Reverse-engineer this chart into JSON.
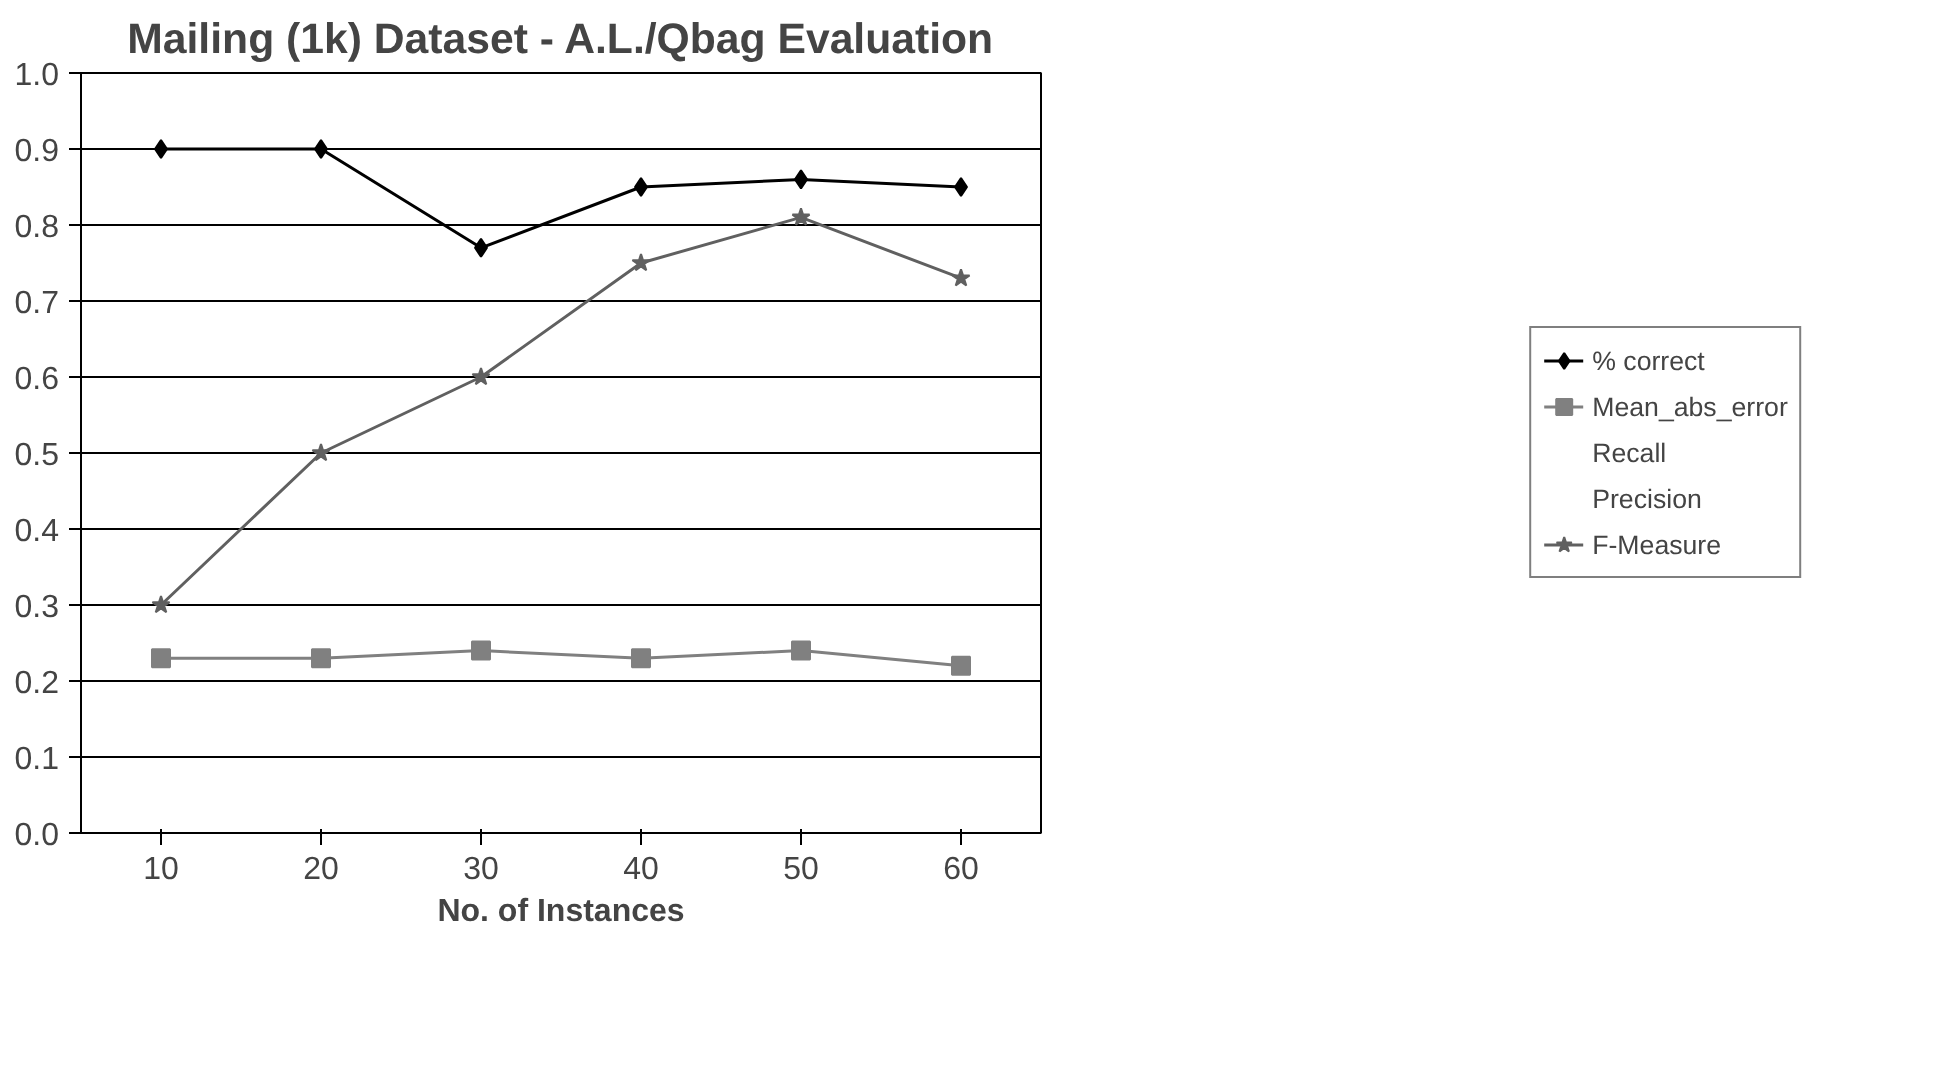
{
  "chart_data": {
    "type": "line",
    "title": "Mailing (1k) Dataset - A.L./Qbag Evaluation",
    "xlabel": "No. of Instances",
    "categories": [
      "10",
      "20",
      "30",
      "40",
      "50",
      "60"
    ],
    "series": [
      {
        "name": "% correct",
        "color": "#000000",
        "marker": "diamond",
        "values": [
          0.9,
          0.9,
          0.77,
          0.85,
          0.86,
          0.85
        ]
      },
      {
        "name": "Mean_abs_error",
        "color": "#808080",
        "marker": "square",
        "values": [
          0.23,
          0.23,
          0.24,
          0.23,
          0.24,
          0.22
        ]
      },
      {
        "name": "Recall",
        "marker": "none",
        "values": [
          null,
          null,
          null,
          null,
          null,
          null
        ]
      },
      {
        "name": "Precision",
        "marker": "none",
        "values": [
          null,
          null,
          null,
          null,
          null,
          null
        ]
      },
      {
        "name": "F-Measure",
        "color": "#606060",
        "marker": "star",
        "values": [
          0.3,
          0.5,
          0.6,
          0.75,
          0.81,
          0.73
        ]
      }
    ],
    "ylim": [
      0,
      1
    ],
    "yticks": [
      {
        "value": 0,
        "label": "0.0"
      },
      {
        "value": 0.1,
        "label": "0.1"
      },
      {
        "value": 0.2,
        "label": "0.2"
      },
      {
        "value": 0.3,
        "label": "0.3"
      },
      {
        "value": 0.4,
        "label": "0.4"
      },
      {
        "value": 0.5,
        "label": "0.5"
      },
      {
        "value": 0.6,
        "label": "0.6"
      },
      {
        "value": 0.7,
        "label": "0.7"
      },
      {
        "value": 0.8,
        "label": "0.8"
      },
      {
        "value": 0.9,
        "label": "0.9"
      },
      {
        "value": 1,
        "label": "1.0"
      }
    ],
    "grid": "y",
    "legend": "right"
  }
}
